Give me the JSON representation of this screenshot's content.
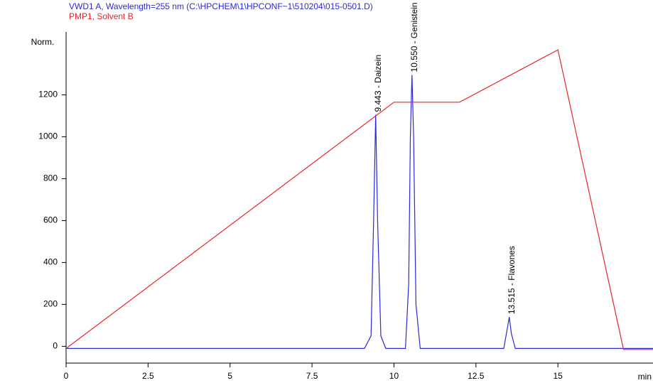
{
  "chart_data": {
    "type": "line",
    "y_label": "Norm.",
    "x_label": "min",
    "xlim": [
      0,
      17.9
    ],
    "ylim": [
      -80,
      1500
    ],
    "xticks": [
      0,
      2.5,
      5,
      7.5,
      10,
      12.5,
      15
    ],
    "yticks": [
      0,
      200,
      400,
      600,
      800,
      1000,
      1200
    ],
    "series": [
      {
        "name": "VWD1 A, Wavelength=255 nm (C:\\HPCHEM\\1\\HPCONF~1\\510204\\015-0501.D)",
        "color": "#2a2adc",
        "x": [
          0,
          9.1,
          9.3,
          9.38,
          9.443,
          9.5,
          9.6,
          9.75,
          10.35,
          10.45,
          10.5,
          10.55,
          10.6,
          10.67,
          10.8,
          13.35,
          13.45,
          13.515,
          13.58,
          13.7,
          17.9
        ],
        "values": [
          -10,
          -10,
          50,
          600,
          1105,
          600,
          50,
          -10,
          -10,
          300,
          1000,
          1295,
          1000,
          200,
          -10,
          -10,
          80,
          140,
          60,
          -10,
          -10
        ]
      },
      {
        "name": "PMP1, Solvent B",
        "color": "#e8262a",
        "x": [
          0,
          10,
          12,
          15,
          17,
          17.9
        ],
        "values": [
          -10,
          1165,
          1165,
          1415,
          -15,
          -15
        ]
      }
    ],
    "annotations": [
      {
        "label": "9.443 - Daizein",
        "x": 9.443,
        "y": 1105
      },
      {
        "label": "10.550 - Genistein",
        "x": 10.55,
        "y": 1295
      },
      {
        "label": "13.515 - Flavones",
        "x": 13.515,
        "y": 140
      }
    ]
  }
}
